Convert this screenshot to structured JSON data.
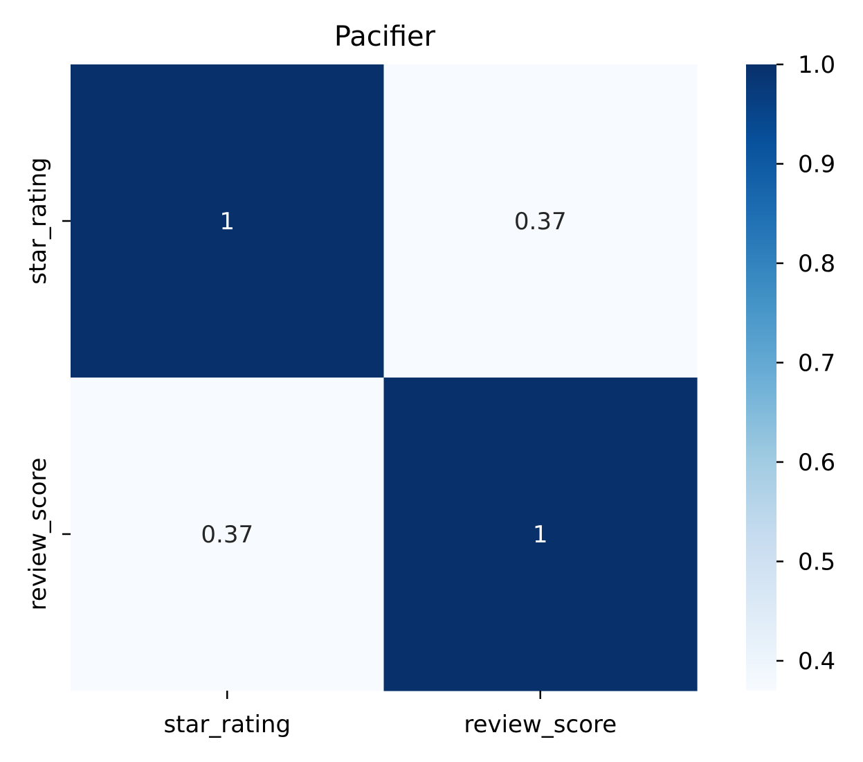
{
  "chart_data": {
    "type": "heatmap",
    "title": "Pacifier",
    "x_categories": [
      "star_rating",
      "review_score"
    ],
    "y_categories": [
      "star_rating",
      "review_score"
    ],
    "values": [
      [
        1.0,
        0.37
      ],
      [
        0.37,
        1.0
      ]
    ],
    "cell_labels": [
      [
        "1",
        "0.37"
      ],
      [
        "0.37",
        "1"
      ]
    ],
    "colormap": "Blues",
    "color_range": [
      0.37,
      1.0
    ],
    "colorbar": {
      "ticks": [
        "0.4",
        "0.5",
        "0.6",
        "0.7",
        "0.8",
        "0.9",
        "1.0"
      ],
      "tick_values": [
        0.4,
        0.5,
        0.6,
        0.7,
        0.8,
        0.9,
        1.0
      ],
      "placement": "right"
    },
    "colors": {
      "low": "#f7fbff",
      "high": "#08306b",
      "label_dark": "#262626",
      "label_light": "#ffffff"
    }
  }
}
